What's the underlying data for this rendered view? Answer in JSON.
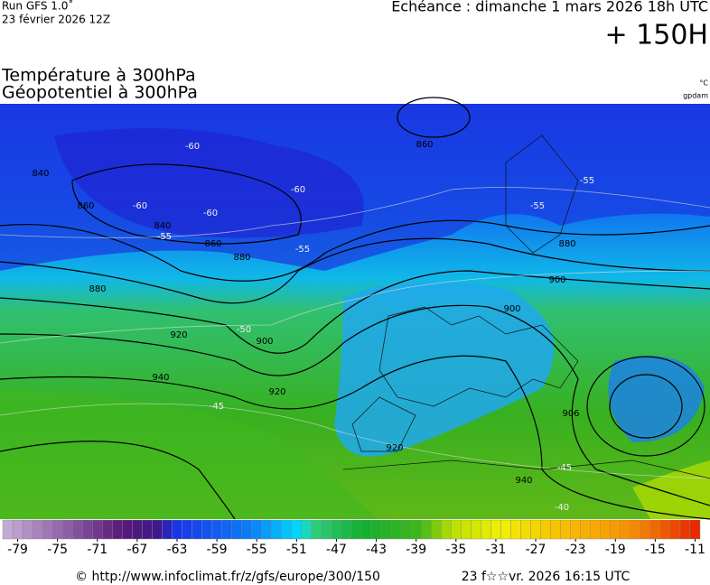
{
  "header": {
    "run": "Run GFS 1.0˚",
    "run_date": "23 février 2026 12Z",
    "valid": "Echéance : dimanche 1 mars 2026 18h UTC",
    "lead": "+ 150H"
  },
  "titles": {
    "line1": "Température à 300hPa",
    "line2": "Géopotentiel à 300hPa",
    "unit_temp": "°C",
    "unit_geo": "gpdam"
  },
  "map": {
    "contour_labels": [
      "840",
      "860",
      "860",
      "880",
      "880",
      "900",
      "920",
      "940",
      "920",
      "900",
      "880",
      "900",
      "920",
      "940",
      "906",
      "860",
      "840"
    ],
    "isotherm_labels": [
      "-60",
      "-60",
      "-60",
      "-60",
      "-55",
      "-55",
      "-55",
      "-50",
      "-45",
      "-45",
      "-40",
      "-55"
    ]
  },
  "colorbar": {
    "labels": [
      -79,
      -75,
      -71,
      -67,
      -63,
      -59,
      -55,
      -51,
      -47,
      -43,
      -39,
      -35,
      -31,
      -27,
      -23,
      -19,
      -15,
      -11
    ],
    "range": [
      -80,
      -10
    ],
    "color_stops": [
      [
        -80,
        "#c8b0d8"
      ],
      [
        -68,
        "#5a1878"
      ],
      [
        -64,
        "#3a1890"
      ],
      [
        -63,
        "#1a30e8"
      ],
      [
        -55,
        "#0a80f8"
      ],
      [
        -50,
        "#00e0f8"
      ],
      [
        -49,
        "#30d080"
      ],
      [
        -44,
        "#10b030"
      ],
      [
        -38,
        "#40b818"
      ],
      [
        -35,
        "#b8e000"
      ],
      [
        -30,
        "#f0f000"
      ],
      [
        -24,
        "#f8c000"
      ],
      [
        -17,
        "#f89000"
      ],
      [
        -10,
        "#e82000"
      ]
    ]
  },
  "footer": {
    "url": "© http://www.infoclimat.fr/z/gfs/europe/300/150",
    "generated": "23 f☆☆vr. 2026 16:15 UTC"
  }
}
